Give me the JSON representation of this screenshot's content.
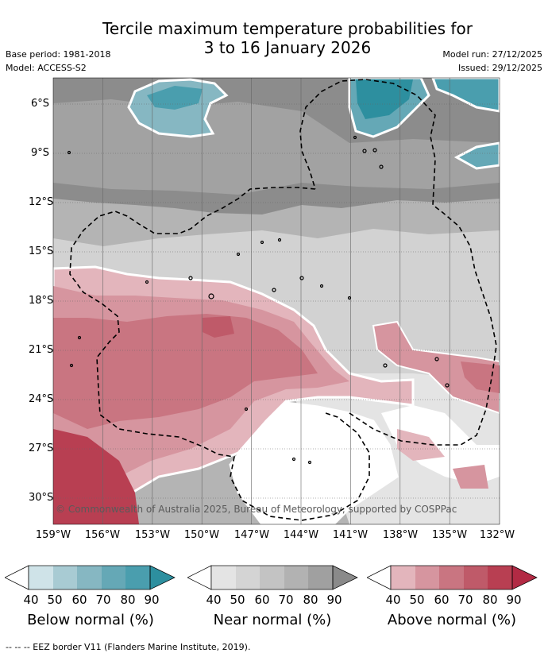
{
  "header": {
    "title_line1": "Tercile maximum temperature probabilities for",
    "title_line2": "3 to 16 January 2026",
    "base_period": "Base period: 1981-2018",
    "model": "Model: ACCESS-S2",
    "model_run": "Model run: 27/12/2025",
    "issued": "Issued: 29/12/2025"
  },
  "map": {
    "latitude_labels": [
      "6°S",
      "9°S",
      "12°S",
      "15°S",
      "18°S",
      "21°S",
      "24°S",
      "27°S",
      "30°S"
    ],
    "longitude_labels": [
      "159°W",
      "156°W",
      "153°W",
      "150°W",
      "147°W",
      "144°W",
      "141°W",
      "138°W",
      "135°W",
      "132°W"
    ],
    "credit": "© Commonwealth of Australia 2025, Bureau of Meteorology, supported by COSPPac"
  },
  "legend": {
    "below": {
      "label": "Below normal (%)",
      "ticks": [
        "40",
        "50",
        "60",
        "70",
        "80",
        "90"
      ],
      "colors": [
        "#ffffff",
        "#cfe3e8",
        "#a8cbd3",
        "#86b7c2",
        "#65a8b6",
        "#4a9eae",
        "#2d8f9f"
      ]
    },
    "near": {
      "label": "Near normal (%)",
      "ticks": [
        "40",
        "50",
        "60",
        "70",
        "80",
        "90"
      ],
      "colors": [
        "#ffffff",
        "#e4e4e4",
        "#d4d4d4",
        "#c3c3c3",
        "#b2b2b2",
        "#a0a0a0",
        "#8a8a8a"
      ]
    },
    "above": {
      "label": "Above normal (%)",
      "ticks": [
        "40",
        "50",
        "60",
        "70",
        "80",
        "90"
      ],
      "colors": [
        "#ffffff",
        "#e3b5bc",
        "#d6959f",
        "#c97581",
        "#bf5a69",
        "#b83f52",
        "#b22a44"
      ]
    }
  },
  "footnote": "--  --  -- EEZ border V11 (Flanders Marine Institute, 2019)."
}
